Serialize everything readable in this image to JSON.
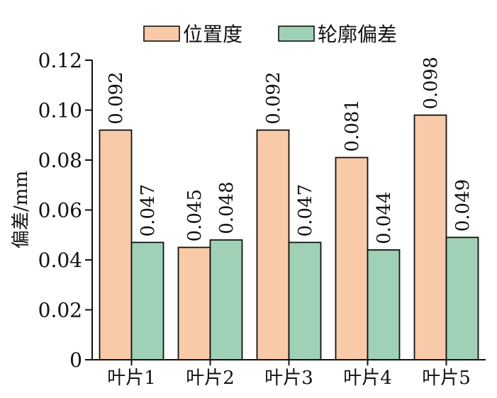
{
  "chart_data": {
    "type": "bar",
    "categories": [
      "叶片1",
      "叶片2",
      "叶片3",
      "叶片4",
      "叶片5"
    ],
    "series": [
      {
        "name": "位置度",
        "values": [
          0.092,
          0.045,
          0.092,
          0.081,
          0.098
        ],
        "color": "#F8CAA7"
      },
      {
        "name": "轮廓偏差",
        "values": [
          0.047,
          0.048,
          0.047,
          0.044,
          0.049
        ],
        "color": "#9FD1B6"
      }
    ],
    "data_labels": [
      [
        "0.092",
        "0.045",
        "0.092",
        "0.081",
        "0.098"
      ],
      [
        "0.047",
        "0.048",
        "0.047",
        "0.044",
        "0.049"
      ]
    ],
    "ylabel": "偏差/mm",
    "ylim": [
      0,
      0.12
    ],
    "yticks": [
      0,
      0.02,
      0.04,
      0.06,
      0.08,
      0.1,
      0.12
    ],
    "ytick_labels": [
      "0",
      "0.02",
      "0.04",
      "0.06",
      "0.08",
      "0.10",
      "0.12"
    ],
    "legend_position": "top",
    "grid": false
  }
}
